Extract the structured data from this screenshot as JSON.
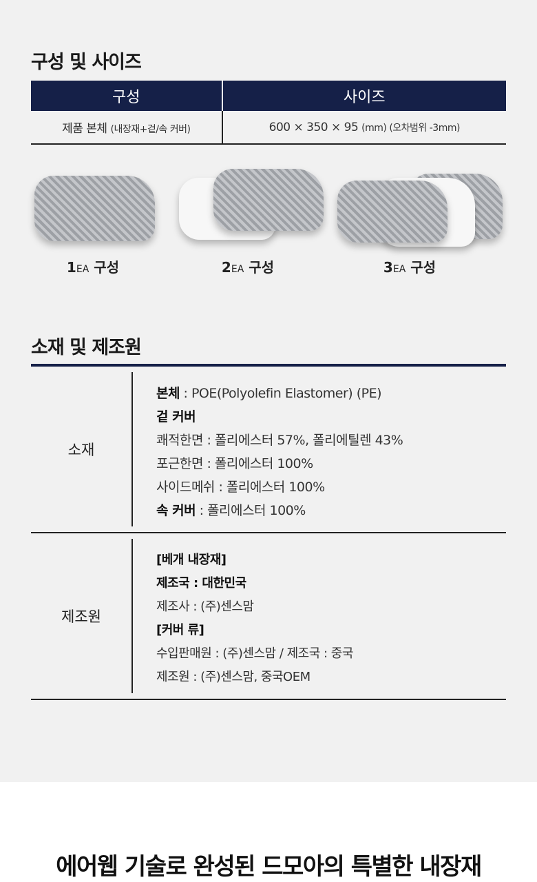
{
  "composition": {
    "title": "구성 및 사이즈",
    "headers": [
      "구성",
      "사이즈"
    ],
    "row": {
      "item": "제품 본체",
      "item_note": "(내장재+겉/속 커버)",
      "size": "600 × 350 × 95",
      "size_note": "(mm) (오차범위 -3mm)"
    }
  },
  "sets": [
    {
      "num": "1",
      "unit": "EA",
      "label": "구성"
    },
    {
      "num": "2",
      "unit": "EA",
      "label": "구성"
    },
    {
      "num": "3",
      "unit": "EA",
      "label": "구성"
    }
  ],
  "materials": {
    "title": "소재 및 제조원",
    "material_label": "소재",
    "material_lines": [
      {
        "bold": "본체",
        "text": " : POE(Polyolefin Elastomer) (PE)"
      },
      {
        "bold": "겉 커버",
        "text": ""
      },
      {
        "bold": "",
        "text": "쾌적한면 : 폴리에스터  57%, 폴리에틸렌 43%"
      },
      {
        "bold": "",
        "text": "포근한면 : 폴리에스터 100%"
      },
      {
        "bold": "",
        "text": "사이드메쉬 : 폴리에스터 100%"
      },
      {
        "bold": "속 커버",
        "text": " : 폴리에스터 100%"
      }
    ],
    "maker_label": "제조원",
    "maker_lines": [
      {
        "bold": "[베개 내장재]",
        "text": ""
      },
      {
        "bold": "제조국 : 대한민국",
        "text": ""
      },
      {
        "bold": "",
        "text": "제조사 : (주)센스맘"
      },
      {
        "bold": "[커버 류]",
        "text": ""
      },
      {
        "bold": "",
        "text": "수입판매원 : (주)센스맘 / 제조국 : 중국"
      },
      {
        "bold": "",
        "text": "제조원 : (주)센스맘, 중국OEM"
      }
    ]
  },
  "slogan": "에어웹 기술로 완성된 드모아의 특별한 내장재"
}
